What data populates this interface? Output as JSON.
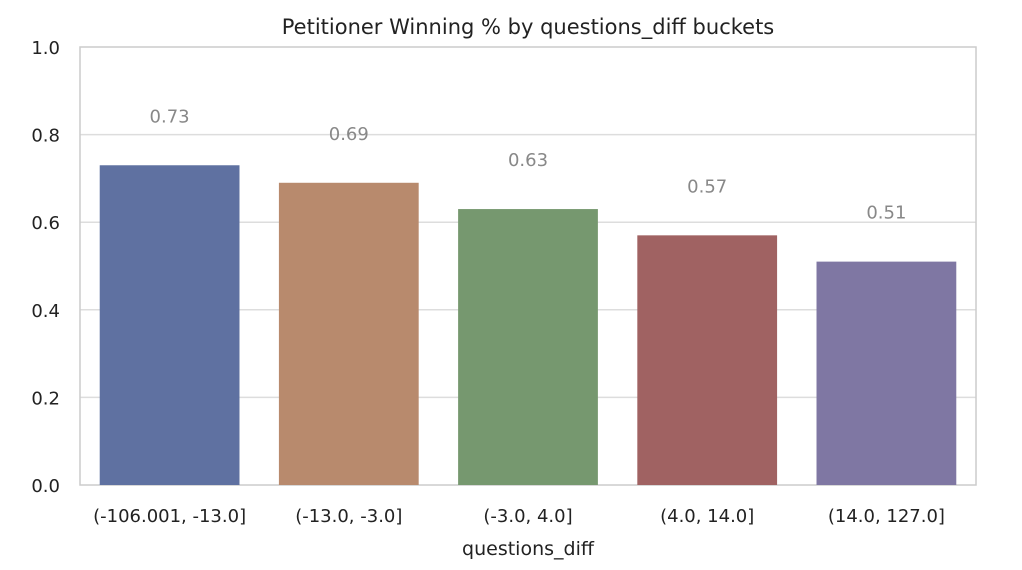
{
  "chart_data": {
    "type": "bar",
    "title": "Petitioner Winning % by questions_diff buckets",
    "xlabel": "questions_diff",
    "ylabel": "",
    "categories": [
      "(-106.001, -13.0]",
      "(-13.0, -3.0]",
      "(-3.0, 4.0]",
      "(4.0, 14.0]",
      "(14.0, 127.0]"
    ],
    "values": [
      0.73,
      0.69,
      0.63,
      0.57,
      0.51
    ],
    "data_labels": [
      "0.73",
      "0.69",
      "0.63",
      "0.57",
      "0.51"
    ],
    "colors": [
      "#5f71a1",
      "#b88a6d",
      "#76986f",
      "#a06262",
      "#7f77a3"
    ],
    "ylim": [
      0,
      1.0
    ],
    "yticks": [
      0.0,
      0.2,
      0.4,
      0.6,
      0.8,
      1.0
    ],
    "ytick_labels": [
      "0.0",
      "0.2",
      "0.4",
      "0.6",
      "0.8",
      "1.0"
    ],
    "grid": true,
    "grid_color": "#dddddd",
    "axis_color": "#cccccc",
    "label_color": "#888888",
    "text_color": "#222222"
  }
}
